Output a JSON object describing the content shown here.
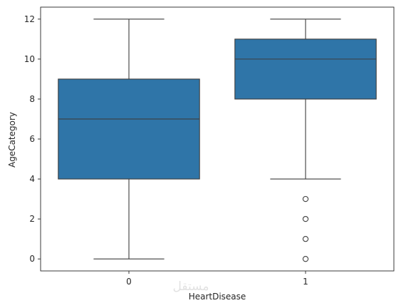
{
  "chart_data": {
    "type": "box",
    "xlabel": "HeartDisease",
    "ylabel": "AgeCategory",
    "categories": [
      "0",
      "1"
    ],
    "ylim": [
      -0.6,
      12.6
    ],
    "yticks": [
      0,
      2,
      4,
      6,
      8,
      10,
      12
    ],
    "grid": false,
    "series": [
      {
        "category": "0",
        "whisker_low": 0,
        "q1": 4,
        "median": 7,
        "q3": 9,
        "whisker_high": 12,
        "outliers": []
      },
      {
        "category": "1",
        "whisker_low": 4,
        "q1": 8,
        "median": 10,
        "q3": 11,
        "whisker_high": 12,
        "outliers": [
          0,
          1,
          2,
          3
        ]
      }
    ],
    "colors": {
      "box_fill": "#2f75a8",
      "line": "#3d3d3d",
      "axis": "#262626"
    }
  },
  "watermark": {
    "text": "مستقل"
  }
}
